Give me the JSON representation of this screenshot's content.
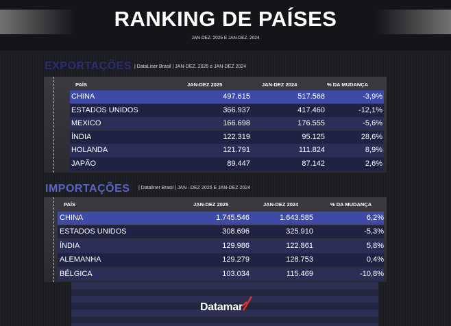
{
  "header": {
    "title": "RANKING DE PAÍSES",
    "subtitle": "JAN-DEZ. 2025 E JAN-DEZ. 2024"
  },
  "exports": {
    "title": "EXPORTAÇÕES",
    "meta": "| DataLiner Brasil | JAN-DEZ. 2025 e JAN-DEZ 2024",
    "columns": [
      "PAÍS",
      "JAN-DEZ 2025",
      "JAN-DEZ 2024",
      "% DA MUDANÇA"
    ],
    "rows": [
      [
        "CHINA",
        "497.615",
        "517.568",
        "-3,9%"
      ],
      [
        "ESTADOS UNIDOS",
        "366.937",
        "417.460",
        "-12,1%"
      ],
      [
        "MEXICO",
        "166.698",
        "176.555",
        "-5,6%"
      ],
      [
        "ÍNDIA",
        "122.319",
        "95.125",
        "28,6%"
      ],
      [
        "HOLANDA",
        "121.791",
        "111.824",
        "8,9%"
      ],
      [
        "JAPÃO",
        "89.447",
        "87.142",
        "2,6%"
      ]
    ]
  },
  "imports": {
    "title": "IMPORTAÇÕES",
    "meta": "| Dataliner Brasil | JAN –DEZ 2025 E JAN-DEZ 2024",
    "columns": [
      "PAÍS",
      "JAN-DEZ 2025",
      "JAN-DEZ 2024",
      "% DA MUDANÇA"
    ],
    "rows": [
      [
        "CHINA",
        "1.745.546",
        "1.643.585",
        "6,2%"
      ],
      [
        "ESTADOS UNIDOS",
        "308.696",
        "325.910",
        "-5,3%"
      ],
      [
        "ÍNDIA",
        "129.986",
        "122.861",
        "5,8%"
      ],
      [
        "ALEMANHA",
        "129.279",
        "128.753",
        "0,4%"
      ],
      [
        "BÉLGICA",
        "103.034",
        "115.469",
        "-10,8%"
      ]
    ]
  },
  "footer": {
    "logo_text": "Datamar"
  },
  "colors": {
    "exports_title": "#2a2d6e",
    "imports_title": "#5b63c8",
    "highlight_row": "#3f4aa6",
    "row_dark": "#1f2242",
    "row_mid": "#2b2f58",
    "logo_accent": "#e0302a"
  }
}
